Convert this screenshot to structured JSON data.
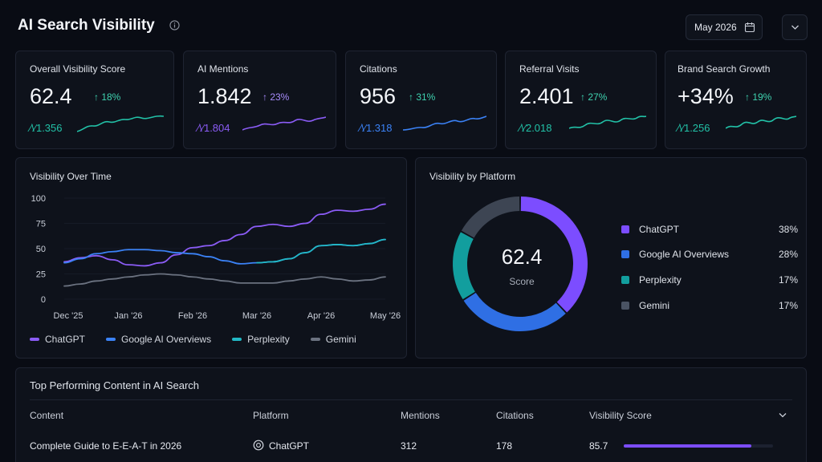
{
  "header": {
    "title": "AI Search Visibility",
    "date_value": "May 2026",
    "info_icon": "info-icon",
    "calendar_icon": "calendar-icon",
    "dropdown_icon": "chevron-down-icon"
  },
  "kpis": [
    {
      "title": "Overall Visibility Score",
      "value": "62.4",
      "delta": "↑ 18%",
      "sub": "1.356",
      "color": "#22c1a7",
      "delta_color": "#3fd3b0"
    },
    {
      "title": "AI Mentions",
      "value": "1.842",
      "delta": "↑ 23%",
      "sub": "1.804",
      "color": "#8b5cf6",
      "delta_color": "#a78bfa"
    },
    {
      "title": "Citations",
      "value": "956",
      "delta": "↑ 31%",
      "sub": "1.318",
      "color": "#3b82f6",
      "delta_color": "#3fd3b0"
    },
    {
      "title": "Referral Visits",
      "value": "2.401",
      "delta": "↑ 27%",
      "sub": "2.018",
      "color": "#22c1a7",
      "delta_color": "#3fd3b0"
    },
    {
      "title": "Brand Search Growth",
      "value": "+34%",
      "delta": "↑ 19%",
      "sub": "1.256",
      "color": "#22c1a7",
      "delta_color": "#3fd3b0"
    }
  ],
  "visibility_over_time": {
    "title": "Visibility Over Time",
    "legend": [
      "ChatGPT",
      "Google AI Overviews",
      "Perplexity",
      "Gemini"
    ]
  },
  "visibility_by_platform": {
    "title": "Visibility by Platform",
    "center_value": "62.4",
    "center_label": "Score",
    "platforms": [
      {
        "name": "ChatGPT",
        "pct": "38%",
        "color": "#7c4dff"
      },
      {
        "name": "Google AI Overviews",
        "pct": "28%",
        "color": "#2f6fe4"
      },
      {
        "name": "Perplexity",
        "pct": "17%",
        "color": "#129e9e"
      },
      {
        "name": "Gemini",
        "pct": "17%",
        "color": "#4a5363"
      }
    ]
  },
  "chart_data": [
    {
      "type": "line",
      "title": "Visibility Over Time",
      "categories": [
        "Dec '25",
        "Jan '26",
        "Feb '26",
        "Mar '26",
        "Apr '26",
        "May '26"
      ],
      "ylim": [
        0,
        100
      ],
      "yticks": [
        "0",
        "25",
        "50",
        "75",
        "100"
      ],
      "legend_placement": "bottom",
      "series": [
        {
          "name": "ChatGPT",
          "color": "#8b5cf6",
          "x": [
            0,
            0.25,
            0.5,
            0.75,
            1,
            1.25,
            1.5,
            1.75,
            2,
            2.25,
            2.5,
            2.75,
            3,
            3.25,
            3.5,
            3.75,
            4,
            4.25,
            4.5,
            4.75,
            5
          ],
          "values": [
            37,
            41,
            43,
            39,
            34,
            33,
            36,
            44,
            51,
            53,
            58,
            64,
            72,
            74,
            72,
            75,
            84,
            88,
            87,
            89,
            94
          ]
        },
        {
          "name": "Google AI Overviews",
          "color": "#3b82f6",
          "x": [
            0,
            0.25,
            0.5,
            0.75,
            1,
            1.25,
            1.5,
            1.75,
            2,
            2.25,
            2.5,
            2.75,
            3,
            3.25,
            3.5,
            3.75,
            4,
            4.25,
            4.5,
            4.75,
            5
          ],
          "values": [
            36,
            40,
            45,
            47,
            49,
            49,
            48,
            46,
            45,
            42,
            38,
            35,
            36,
            37,
            40,
            46,
            53,
            54,
            53,
            55,
            59
          ]
        },
        {
          "name": "Perplexity",
          "color": "#22b8c5",
          "x": [
            3,
            3.25,
            3.5,
            3.75,
            4,
            4.25,
            4.5,
            4.75,
            5
          ],
          "values": [
            36,
            37,
            40,
            46,
            53,
            54,
            53,
            55,
            59
          ]
        },
        {
          "name": "Gemini",
          "color": "#6b7280",
          "x": [
            0,
            0.25,
            0.5,
            0.75,
            1,
            1.25,
            1.5,
            1.75,
            2,
            2.25,
            2.5,
            2.75,
            3,
            3.25,
            3.5,
            3.75,
            4,
            4.25,
            4.5,
            4.75,
            5
          ],
          "values": [
            13,
            15,
            18,
            20,
            22,
            24,
            25,
            24,
            22,
            20,
            18,
            16,
            16,
            16,
            18,
            20,
            22,
            20,
            18,
            19,
            22
          ]
        }
      ]
    },
    {
      "type": "pie",
      "title": "Visibility by Platform",
      "categories": [
        "ChatGPT",
        "Google AI Overviews",
        "Perplexity",
        "Gemini"
      ],
      "values": [
        38,
        28,
        17,
        17
      ],
      "colors": [
        "#7c4dff",
        "#2f6fe4",
        "#129e9e",
        "#3d4553"
      ],
      "legend_placement": "right"
    }
  ],
  "table": {
    "title": "Top Performing Content in AI Search",
    "columns": [
      "Content",
      "Platform",
      "Mentions",
      "Citations",
      "Visibility Score"
    ],
    "rows": [
      {
        "content": "Complete Guide to E-E-A-T in 2026",
        "platform": "ChatGPT",
        "mentions": "312",
        "citations": "178",
        "score": "85.7",
        "score_value": 85.7
      }
    ],
    "sort_icon": "chevron-down-icon",
    "platform_icon": "chatgpt-icon"
  }
}
